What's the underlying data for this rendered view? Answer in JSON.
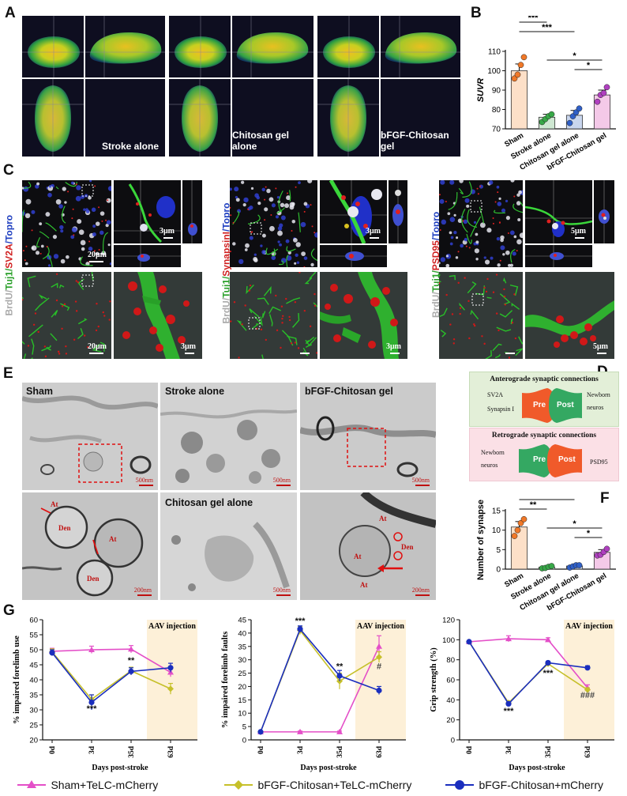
{
  "panel_labels": {
    "A": "A",
    "B": "B",
    "C": "C",
    "D": "D",
    "E": "E",
    "F": "F",
    "G": "G"
  },
  "panelA": {
    "labels": [
      "Stroke alone",
      "Chitosan gel alone",
      "bFGF-Chitosan gel"
    ]
  },
  "panelC": {
    "stain_labels": [
      {
        "brdu": "BrdU/",
        "tuj1": "Tuj1/",
        "marker": "SV2A",
        "topro": "/Topro"
      },
      {
        "brdu": "BrdU/",
        "tuj1": "Tuj1/",
        "marker": "SynapsinI",
        "topro": "/Topro"
      },
      {
        "brdu": "BrdU/",
        "tuj1": "Tuj1/",
        "marker": "PSD95",
        "topro": "/Topro"
      }
    ],
    "scalebars": {
      "s20a": "20μm",
      "s3a": "3μm",
      "s20b": "20μm",
      "s3b": "3μm",
      "s3c": "3μm",
      "s3d": "3μm",
      "s5a": "5μm",
      "s5b": "5μm"
    }
  },
  "panelD": {
    "antero": {
      "title": "Anterograde synaptic connections",
      "left1": "SV2A",
      "left2": "Synapsin I",
      "pre": "Pre",
      "post": "Post",
      "right1": "Newborn",
      "right2": "neuros"
    },
    "retro": {
      "title": "Retrograde synaptic connections",
      "left1": "Newborn",
      "left2": "neuros",
      "pre": "Pre",
      "post": "Post",
      "right1": "PSD95"
    }
  },
  "panelE": {
    "labels": {
      "sham": "Sham",
      "stroke": "Stroke alone",
      "bfgf": "bFGF-Chitosan gel",
      "chitosan": "Chitosan gel alone"
    },
    "scalebars": {
      "a": "500nm",
      "b": "500nm",
      "c": "500nm",
      "d": "200nm",
      "e": "500nm",
      "f": "200nm"
    },
    "annot": {
      "at": "At",
      "den": "Den"
    }
  },
  "chart_data": [
    {
      "id": "B",
      "type": "bar",
      "categories": [
        "Sham",
        "Stroke alone",
        "Chitosan gel alone",
        "bFGF-Chitosan gel"
      ],
      "values": [
        100,
        76,
        77,
        87.5
      ],
      "errors": [
        3.5,
        1.5,
        2.5,
        2.5
      ],
      "points": [
        [
          96,
          98,
          103,
          107
        ],
        [
          73.5,
          75,
          76.5,
          77.5
        ],
        [
          73,
          76.5,
          78.5,
          80.5
        ],
        [
          84,
          87.5,
          88.5,
          91.5
        ]
      ],
      "bar_colors": [
        "#fde0c8",
        "#cfe8d2",
        "#c9d6ee",
        "#f4c9e8"
      ],
      "point_colors": [
        "#f07828",
        "#38a848",
        "#3060c8",
        "#b040c0"
      ],
      "ylabel": "SUVR",
      "ylim": [
        70,
        110
      ],
      "yticks": [
        70,
        80,
        90,
        100,
        110
      ],
      "significance": [
        {
          "from": 0,
          "to": 1,
          "label": "***"
        },
        {
          "from": 0,
          "to": 2,
          "label": "***"
        },
        {
          "from": 1,
          "to": 3,
          "label": "*"
        },
        {
          "from": 2,
          "to": 3,
          "label": "*"
        }
      ]
    },
    {
      "id": "F",
      "type": "bar",
      "categories": [
        "Sham",
        "Stroke alone",
        "Chitosan gel alone",
        "bFGF-Chitosan gel"
      ],
      "values": [
        10.8,
        0.5,
        0.8,
        4.3
      ],
      "errors": [
        1.4,
        0.2,
        0.2,
        0.7
      ],
      "points": [
        [
          8.5,
          10.0,
          11.8,
          12.8
        ],
        [
          0.2,
          0.3,
          0.6,
          0.8
        ],
        [
          0.4,
          0.7,
          1.0,
          1.0
        ],
        [
          3.5,
          3.7,
          4.4,
          5.2
        ]
      ],
      "bar_colors": [
        "#fde0c8",
        "#cfe8d2",
        "#c9d6ee",
        "#f4c9e8"
      ],
      "point_colors": [
        "#f07828",
        "#38a848",
        "#3060c8",
        "#b040c0"
      ],
      "ylabel": "Number of synapse",
      "ylim": [
        0,
        15
      ],
      "yticks": [
        0,
        5,
        10,
        15
      ],
      "significance": [
        {
          "from": 0,
          "to": 2,
          "label": "**"
        },
        {
          "from": 0,
          "to": 1,
          "label": "**"
        },
        {
          "from": 1,
          "to": 3,
          "label": "*"
        },
        {
          "from": 2,
          "to": 3,
          "label": "*"
        }
      ]
    },
    {
      "id": "G1",
      "type": "line",
      "x": [
        "0d",
        "3d",
        "35d",
        "63d"
      ],
      "series": [
        {
          "name": "Sham+TeLC-mCherry",
          "values": [
            49.5,
            50,
            50.2,
            42.5
          ],
          "errors": [
            1,
            1.2,
            1.2,
            1.5
          ],
          "color": "#e44fc8"
        },
        {
          "name": "bFGF-Chitosan+TeLC-mCherry",
          "values": [
            49.3,
            33.5,
            43,
            37
          ],
          "errors": [
            1,
            1.5,
            1.2,
            1.8
          ],
          "color": "#c6c02a"
        },
        {
          "name": "bFGF-Chitosan+mCherry",
          "values": [
            49,
            32.5,
            42.8,
            44
          ],
          "errors": [
            1,
            2.5,
            1.2,
            1.5
          ],
          "color": "#1a2ebe"
        }
      ],
      "ylabel": "% impaired forelimb use",
      "xlabel": "Days post-stroke",
      "ylim": [
        20,
        60
      ],
      "yticks": [
        20,
        25,
        30,
        35,
        40,
        45,
        50,
        55,
        60
      ],
      "shade_label": "AAV injection",
      "annotations": [
        {
          "x": 1,
          "y": 29.5,
          "label": "***"
        },
        {
          "x": 2,
          "y": 45.5,
          "label": "**"
        }
      ]
    },
    {
      "id": "G2",
      "type": "line",
      "x": [
        "0d",
        "3d",
        "35d",
        "63d"
      ],
      "series": [
        {
          "name": "Sham+TeLC-mCherry",
          "values": [
            3,
            3,
            3,
            35
          ],
          "errors": [
            0.3,
            0.3,
            0.3,
            4
          ],
          "color": "#e44fc8"
        },
        {
          "name": "bFGF-Chitosan+TeLC-mCherry",
          "values": [
            3,
            41,
            22,
            31
          ],
          "errors": [
            0.3,
            1.5,
            3,
            2
          ],
          "color": "#c6c02a"
        },
        {
          "name": "bFGF-Chitosan+mCherry",
          "values": [
            3,
            41.5,
            24,
            18.5
          ],
          "errors": [
            0.3,
            1.2,
            2,
            1.5
          ],
          "color": "#1a2ebe"
        }
      ],
      "ylabel": "% impaired forelimb faults",
      "xlabel": "Days post-stroke",
      "ylim": [
        0,
        45
      ],
      "yticks": [
        0,
        5,
        10,
        15,
        20,
        25,
        30,
        35,
        40,
        45
      ],
      "shade_label": "AAV injection",
      "annotations": [
        {
          "x": 1,
          "y": 43.5,
          "label": "***"
        },
        {
          "x": 2,
          "y": 26.5,
          "label": "**"
        },
        {
          "x": 3,
          "y": 26.5,
          "label": "#"
        }
      ]
    },
    {
      "id": "G3",
      "type": "line",
      "x": [
        "0d",
        "3d",
        "35d",
        "63d"
      ],
      "series": [
        {
          "name": "Sham+TeLC-mCherry",
          "values": [
            98,
            101,
            100,
            52
          ],
          "errors": [
            1,
            3,
            2,
            3
          ],
          "color": "#e44fc8"
        },
        {
          "name": "bFGF-Chitosan+TeLC-mCherry",
          "values": [
            98,
            37,
            76,
            50
          ],
          "errors": [
            1,
            2,
            2,
            2
          ],
          "color": "#c6c02a"
        },
        {
          "name": "bFGF-Chitosan+mCherry",
          "values": [
            98,
            36,
            77,
            72
          ],
          "errors": [
            1,
            1.5,
            1.5,
            2
          ],
          "color": "#1a2ebe"
        }
      ],
      "ylabel": "Grip strength (%)",
      "xlabel": "Days post-stroke",
      "ylim": [
        0,
        120
      ],
      "yticks": [
        0,
        20,
        40,
        60,
        80,
        100,
        120
      ],
      "shade_label": "AAV injection",
      "annotations": [
        {
          "x": 1,
          "y": 26,
          "label": "***"
        },
        {
          "x": 2,
          "y": 64,
          "label": "***"
        },
        {
          "x": 3,
          "y": 42,
          "label": "###"
        }
      ]
    }
  ],
  "legend": [
    {
      "name": "Sham+TeLC-mCherry",
      "color": "#e44fc8",
      "marker": "triangle"
    },
    {
      "name": "bFGF-Chitosan+TeLC-mCherry",
      "color": "#c6c02a",
      "marker": "diamond"
    },
    {
      "name": "bFGF-Chitosan+mCherry",
      "color": "#1a2ebe",
      "marker": "circle"
    }
  ]
}
